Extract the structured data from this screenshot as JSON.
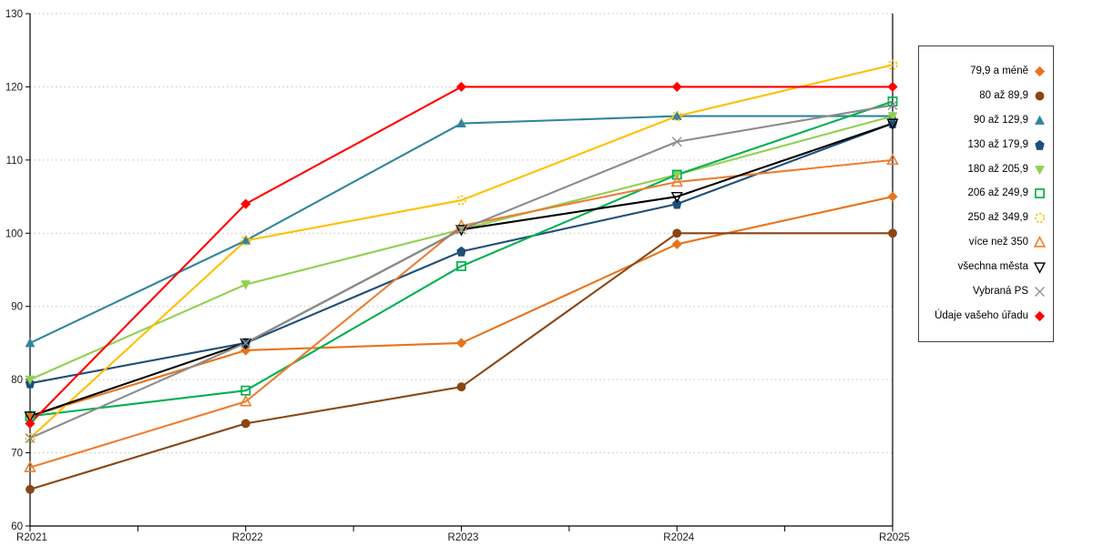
{
  "chart_data": {
    "type": "line",
    "title": "",
    "xlabel": "",
    "ylabel": "",
    "x_categories": [
      "R2021",
      "R2022",
      "R2023",
      "R2024",
      "R2025"
    ],
    "y_tick_labels": [
      "60",
      "70",
      "80",
      "90",
      "100",
      "110",
      "120",
      "130"
    ],
    "ylim": [
      60,
      130
    ],
    "grid": "horizontal-dashed",
    "legend_position": "right-box",
    "series": [
      {
        "name": "79,9 a méně",
        "color": "#E8731B",
        "marker": "diamond",
        "fill": "solid",
        "values": [
          75,
          84,
          85,
          98.5,
          105
        ]
      },
      {
        "name": "80 až 89,9",
        "color": "#8B4513",
        "marker": "circle",
        "fill": "solid",
        "values": [
          65,
          74,
          79,
          100,
          100
        ]
      },
      {
        "name": "90 až 129,9",
        "color": "#31859C",
        "marker": "triangle-up",
        "fill": "solid",
        "values": [
          85,
          99,
          115,
          116,
          116
        ]
      },
      {
        "name": "130 až 179,9",
        "color": "#1F4E79",
        "marker": "pentagon",
        "fill": "solid",
        "values": [
          79.5,
          85,
          97.5,
          104,
          115
        ]
      },
      {
        "name": "180 až 205,9",
        "color": "#92D050",
        "marker": "triangle-down",
        "fill": "solid",
        "values": [
          80,
          93,
          100.5,
          108,
          116
        ]
      },
      {
        "name": "206 až 249,9",
        "color": "#00B050",
        "marker": "square",
        "fill": "open",
        "values": [
          75,
          78.5,
          95.5,
          108,
          118
        ]
      },
      {
        "name": "250 až 349,9",
        "color": "#FFC000",
        "marker": "circle-dashed",
        "fill": "open",
        "values": [
          72,
          99,
          104.5,
          116,
          123
        ]
      },
      {
        "name": "více než 350",
        "color": "#ED7D31",
        "marker": "triangle-up",
        "fill": "open",
        "values": [
          68,
          77,
          101,
          107,
          110
        ]
      },
      {
        "name": "všechna města",
        "color": "#000000",
        "marker": "triangle-down",
        "fill": "open",
        "values": [
          75,
          85,
          100.5,
          105,
          115
        ]
      },
      {
        "name": "Vybraná PS",
        "color": "#8C8C8C",
        "marker": "x",
        "fill": "open",
        "values": [
          72,
          85,
          100.5,
          112.5,
          117.5
        ]
      },
      {
        "name": "Údaje vašeho úřadu",
        "color": "#FF0000",
        "marker": "diamond",
        "fill": "solid",
        "values": [
          74,
          104,
          120,
          120,
          120
        ]
      }
    ]
  }
}
